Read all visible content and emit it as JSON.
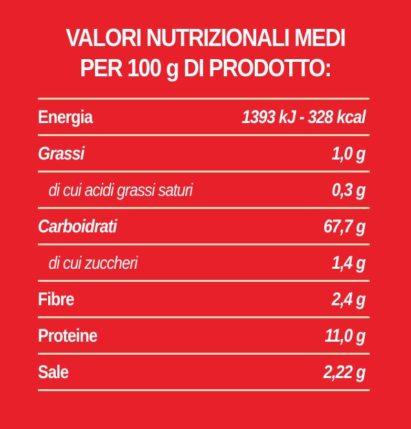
{
  "title": {
    "line1": "VALORI NUTRIZIONALI MEDI",
    "line2": "PER 100 g DI PRODOTTO:"
  },
  "rows": [
    {
      "label": "Energia",
      "value": "1393 kJ - 328 kcal"
    },
    {
      "label": "Grassi",
      "value": "1,0 g"
    },
    {
      "label": "di cui acidi grassi saturi",
      "value": "0,3 g"
    },
    {
      "label": "Carboidrati",
      "value": "67,7 g"
    },
    {
      "label": "di cui zuccheri",
      "value": "1,4 g"
    },
    {
      "label": "Fibre",
      "value": "2,4 g"
    },
    {
      "label": "Proteine",
      "value": "11,0 g"
    },
    {
      "label": "Sale",
      "value": "2,22 g"
    }
  ],
  "colors": {
    "background": "#E8202A",
    "text": "#FFFFFF",
    "rule": "#F5D7B7"
  }
}
